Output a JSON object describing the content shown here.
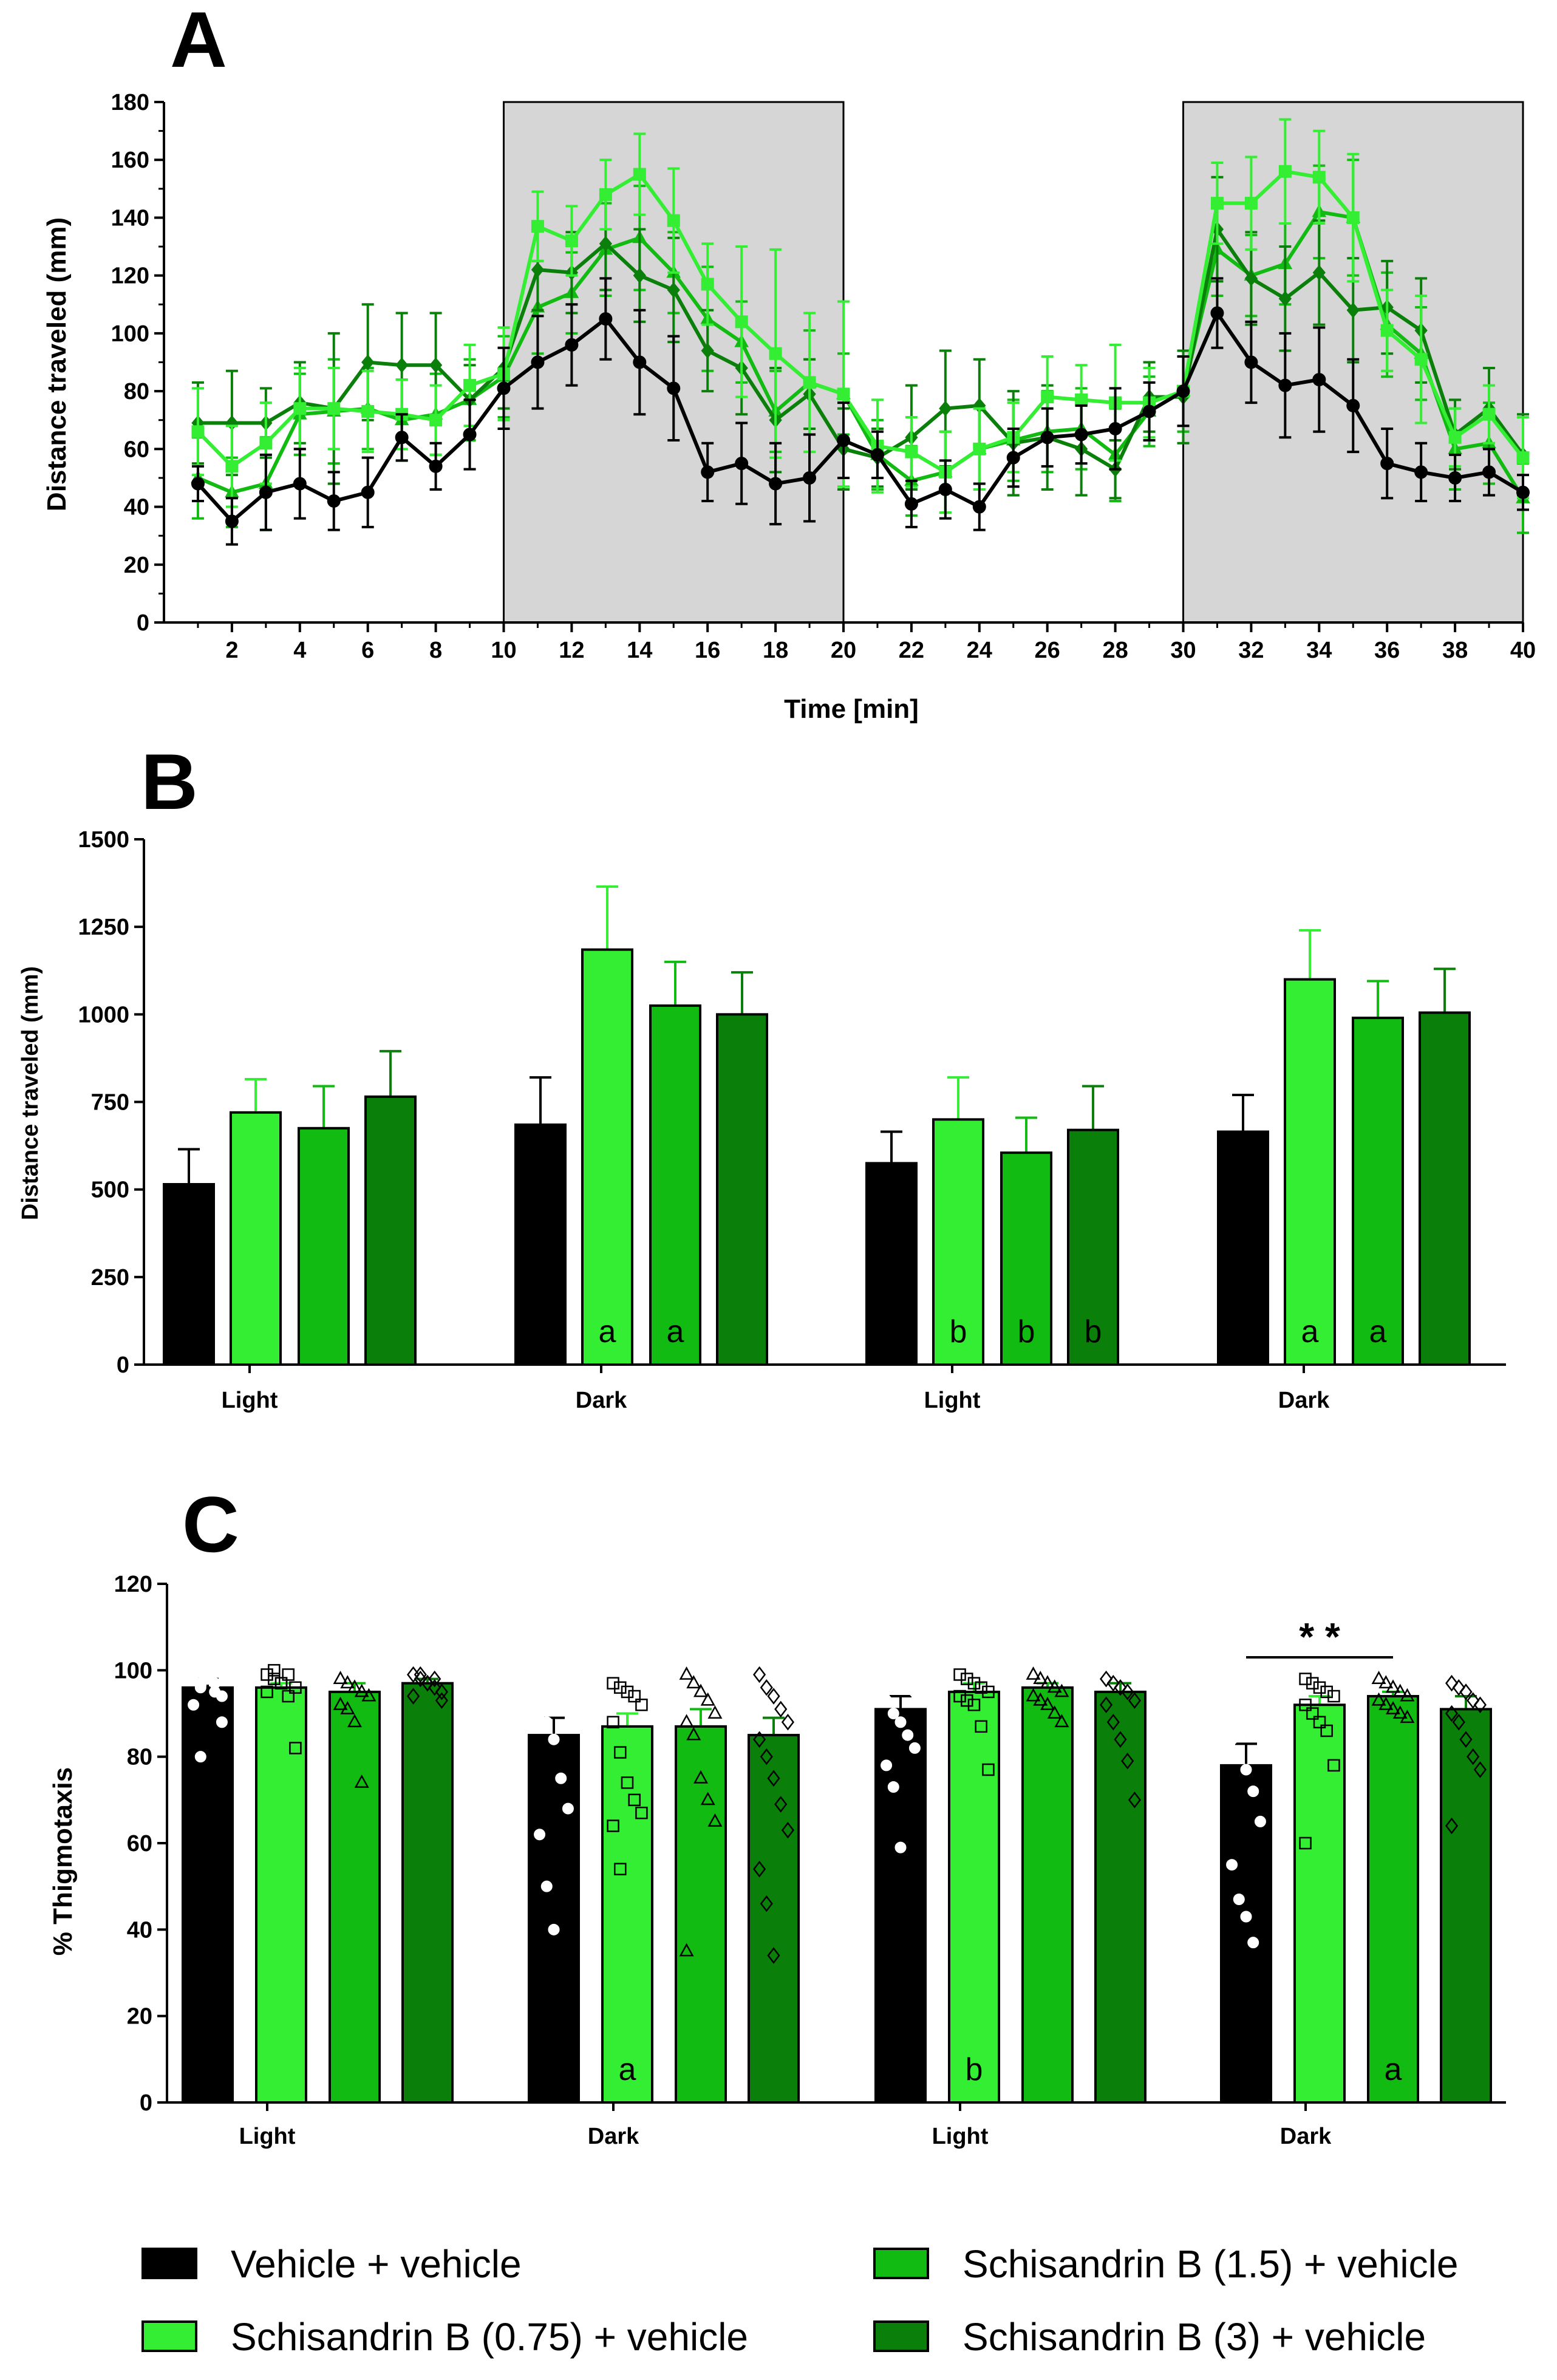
{
  "colors": {
    "vehicle": "#000000",
    "schis_075": "#33ee33",
    "schis_15": "#11bb11",
    "schis_3": "#0a800a",
    "dark_phase_shade": "#d6d6d6"
  },
  "legend": [
    {
      "key": "vehicle",
      "label": "Vehicle + vehicle"
    },
    {
      "key": "schis_075",
      "label": "Schisandrin B (0.75) + vehicle"
    },
    {
      "key": "schis_15",
      "label": "Schisandrin B (1.5) + vehicle"
    },
    {
      "key": "schis_3",
      "label": "Schisandrin B (3) + vehicle"
    }
  ],
  "chart_data": [
    {
      "panel": "A",
      "type": "line",
      "xlabel": "Time [min]",
      "ylabel": "Distance traveled (mm)",
      "xlim": [
        0,
        40
      ],
      "ylim": [
        0,
        180
      ],
      "xticks": [
        2,
        4,
        6,
        8,
        10,
        12,
        14,
        16,
        18,
        20,
        22,
        24,
        26,
        28,
        30,
        32,
        34,
        36,
        38,
        40
      ],
      "yticks": [
        0,
        20,
        40,
        60,
        80,
        100,
        120,
        140,
        160,
        180
      ],
      "shaded_intervals": [
        [
          10,
          20
        ],
        [
          30,
          40
        ]
      ],
      "x": [
        1,
        2,
        3,
        4,
        5,
        6,
        7,
        8,
        9,
        10,
        11,
        12,
        13,
        14,
        15,
        16,
        17,
        18,
        19,
        20,
        21,
        22,
        23,
        24,
        25,
        26,
        27,
        28,
        29,
        30,
        31,
        32,
        33,
        34,
        35,
        36,
        37,
        38,
        39,
        40
      ],
      "series": [
        {
          "name": "Vehicle + vehicle",
          "key": "vehicle",
          "marker": "circle",
          "values": [
            48,
            35,
            45,
            48,
            42,
            45,
            64,
            54,
            65,
            81,
            90,
            96,
            105,
            90,
            81,
            52,
            55,
            48,
            50,
            63,
            58,
            41,
            46,
            40,
            57,
            64,
            65,
            67,
            73,
            80,
            107,
            90,
            82,
            84,
            75,
            55,
            52,
            50,
            52,
            45
          ],
          "errors": [
            6,
            8,
            13,
            12,
            10,
            12,
            8,
            8,
            12,
            14,
            16,
            14,
            14,
            18,
            18,
            10,
            14,
            14,
            15,
            13,
            8,
            8,
            10,
            8,
            10,
            10,
            10,
            14,
            10,
            12,
            12,
            14,
            18,
            18,
            16,
            12,
            10,
            8,
            8,
            6
          ]
        },
        {
          "name": "Schisandrin B (0.75) + vehicle",
          "key": "schis_075",
          "marker": "square",
          "values": [
            66,
            54,
            62,
            74,
            74,
            73,
            72,
            70,
            82,
            86,
            137,
            132,
            148,
            155,
            139,
            117,
            104,
            93,
            83,
            79,
            61,
            59,
            52,
            60,
            64,
            78,
            77,
            76,
            76,
            80,
            145,
            145,
            156,
            154,
            140,
            101,
            91,
            64,
            72,
            57
          ],
          "errors": [
            15,
            14,
            14,
            14,
            14,
            14,
            12,
            12,
            14,
            16,
            12,
            12,
            12,
            14,
            18,
            14,
            26,
            36,
            24,
            32,
            16,
            12,
            14,
            14,
            12,
            14,
            12,
            20,
            12,
            12,
            14,
            16,
            18,
            16,
            22,
            14,
            22,
            10,
            10,
            14
          ]
        },
        {
          "name": "Schisandrin B (1.5) + vehicle",
          "key": "schis_15",
          "marker": "triangle",
          "values": [
            50,
            45,
            48,
            72,
            73,
            74,
            70,
            72,
            77,
            85,
            109,
            114,
            129,
            133,
            121,
            105,
            97,
            73,
            83,
            79,
            58,
            49,
            52,
            60,
            63,
            66,
            67,
            58,
            73,
            80,
            129,
            120,
            124,
            142,
            140,
            103,
            93,
            60,
            62,
            43
          ],
          "errors": [
            14,
            12,
            16,
            14,
            18,
            14,
            14,
            14,
            14,
            14,
            16,
            14,
            16,
            18,
            14,
            18,
            14,
            14,
            18,
            14,
            12,
            12,
            14,
            14,
            14,
            14,
            14,
            16,
            12,
            14,
            16,
            14,
            14,
            16,
            20,
            18,
            16,
            14,
            14,
            12
          ]
        },
        {
          "name": "Schisandrin B (3) + vehicle",
          "key": "schis_3",
          "marker": "diamond",
          "values": [
            69,
            69,
            69,
            76,
            74,
            90,
            89,
            89,
            77,
            88,
            122,
            121,
            131,
            120,
            115,
            94,
            88,
            70,
            79,
            60,
            57,
            64,
            74,
            75,
            62,
            64,
            60,
            53,
            78,
            78,
            136,
            119,
            112,
            121,
            108,
            109,
            101,
            65,
            74,
            58
          ],
          "errors": [
            14,
            18,
            12,
            14,
            26,
            20,
            18,
            18,
            12,
            14,
            14,
            14,
            16,
            16,
            18,
            14,
            16,
            18,
            12,
            14,
            10,
            18,
            20,
            16,
            18,
            18,
            16,
            10,
            12,
            16,
            18,
            16,
            18,
            18,
            18,
            16,
            18,
            12,
            14,
            14
          ]
        }
      ]
    },
    {
      "panel": "B",
      "type": "bar",
      "ylabel": "Distance traveled (mm)",
      "ylim": [
        0,
        1500
      ],
      "yticks": [
        0,
        250,
        500,
        750,
        1000,
        1250,
        1500
      ],
      "categories": [
        "Light",
        "Dark",
        "Light",
        "Dark"
      ],
      "series": [
        {
          "name": "Vehicle + vehicle",
          "key": "vehicle",
          "values": [
            515,
            685,
            575,
            665
          ],
          "errors": [
            100,
            135,
            90,
            105
          ],
          "labels": [
            "",
            "",
            "",
            ""
          ]
        },
        {
          "name": "Schisandrin B (0.75) + vehicle",
          "key": "schis_075",
          "values": [
            720,
            1185,
            700,
            1100
          ],
          "errors": [
            95,
            180,
            120,
            140
          ],
          "labels": [
            "",
            "a",
            "b",
            "a"
          ]
        },
        {
          "name": "Schisandrin B (1.5) + vehicle",
          "key": "schis_15",
          "values": [
            675,
            1025,
            605,
            990
          ],
          "errors": [
            120,
            125,
            100,
            105
          ],
          "labels": [
            "",
            "a",
            "b",
            "a"
          ]
        },
        {
          "name": "Schisandrin B (3) + vehicle",
          "key": "schis_3",
          "values": [
            765,
            1000,
            670,
            1005
          ],
          "errors": [
            130,
            120,
            125,
            125
          ],
          "labels": [
            "",
            "",
            "b",
            ""
          ]
        }
      ]
    },
    {
      "panel": "C",
      "type": "bar",
      "ylabel": "% Thigmotaxis",
      "ylim": [
        0,
        120
      ],
      "yticks": [
        0,
        20,
        40,
        60,
        80,
        100,
        120
      ],
      "categories": [
        "Light",
        "Dark",
        "Light",
        "Dark"
      ],
      "significance": {
        "label": "* *",
        "group": 3,
        "from_series": 0,
        "to_series": 2,
        "y": 97
      },
      "series": [
        {
          "name": "Vehicle + vehicle",
          "key": "vehicle",
          "marker": "circle",
          "values": [
            96,
            85,
            91,
            78
          ],
          "errors": [
            2,
            4,
            3,
            5
          ],
          "labels": [
            "",
            "",
            "",
            ""
          ],
          "points": [
            [
              99,
              97,
              98,
              95,
              94,
              99,
              96,
              100,
              97,
              88,
              92,
              80
            ],
            [
              99,
              98,
              96,
              94,
              92,
              90,
              88,
              84,
              75,
              68,
              62,
              50,
              40
            ],
            [
              98,
              97,
              99,
              96,
              95,
              93,
              90,
              88,
              85,
              82,
              78,
              73,
              59
            ],
            [
              98,
              96,
              93,
              91,
              88,
              84,
              80,
              77,
              72,
              65,
              55,
              47,
              43,
              37
            ]
          ]
        },
        {
          "name": "Schisandrin B (0.75) + vehicle",
          "key": "schis_075",
          "marker": "square",
          "values": [
            96,
            87,
            95,
            92
          ],
          "errors": [
            1,
            3,
            2,
            2
          ],
          "labels": [
            "",
            "a",
            "b",
            ""
          ],
          "points": [
            [
              99,
              98,
              97,
              99,
              96,
              95,
              100,
              97,
              94,
              82
            ],
            [
              97,
              96,
              95,
              94,
              92,
              88,
              81,
              74,
              70,
              67,
              64,
              54
            ],
            [
              99,
              98,
              97,
              96,
              95,
              94,
              93,
              92,
              87,
              77
            ],
            [
              98,
              97,
              96,
              95,
              94,
              92,
              90,
              88,
              86,
              78,
              60
            ]
          ]
        },
        {
          "name": "Schisandrin B (1.5) + vehicle",
          "key": "schis_15",
          "marker": "triangle",
          "values": [
            95,
            87,
            96,
            94
          ],
          "errors": [
            2,
            4,
            1,
            1
          ],
          "labels": [
            "",
            "",
            "",
            "a"
          ],
          "points": [
            [
              98,
              97,
              96,
              95,
              94,
              92,
              91,
              88,
              74
            ],
            [
              99,
              97,
              95,
              93,
              90,
              88,
              85,
              75,
              70,
              65,
              35
            ],
            [
              99,
              98,
              97,
              96,
              95,
              94,
              93,
              92,
              90,
              88
            ],
            [
              98,
              97,
              96,
              95,
              94,
              93,
              92,
              91,
              90,
              89
            ]
          ]
        },
        {
          "name": "Schisandrin B (3) + vehicle",
          "key": "schis_3",
          "marker": "diamond",
          "values": [
            97,
            85,
            95,
            91
          ],
          "errors": [
            1,
            4,
            2,
            3
          ],
          "labels": [
            "",
            "",
            "",
            ""
          ],
          "points": [
            [
              99,
              98,
              97,
              96,
              95,
              94,
              99,
              97,
              98,
              93
            ],
            [
              99,
              96,
              94,
              91,
              88,
              84,
              80,
              75,
              69,
              63,
              54,
              46,
              34
            ],
            [
              98,
              97,
              96,
              95,
              93,
              92,
              88,
              84,
              79,
              70
            ],
            [
              97,
              96,
              95,
              93,
              92,
              90,
              88,
              84,
              80,
              77,
              64
            ]
          ]
        }
      ]
    }
  ],
  "panel_A": {
    "letter": "A",
    "xlabel": "Time [min]",
    "ylabel": "Distance traveled (mm)"
  },
  "panel_B": {
    "letter": "B",
    "ylabel": "Distance traveled (mm)"
  },
  "panel_C": {
    "letter": "C",
    "ylabel": "% Thigmotaxis"
  }
}
